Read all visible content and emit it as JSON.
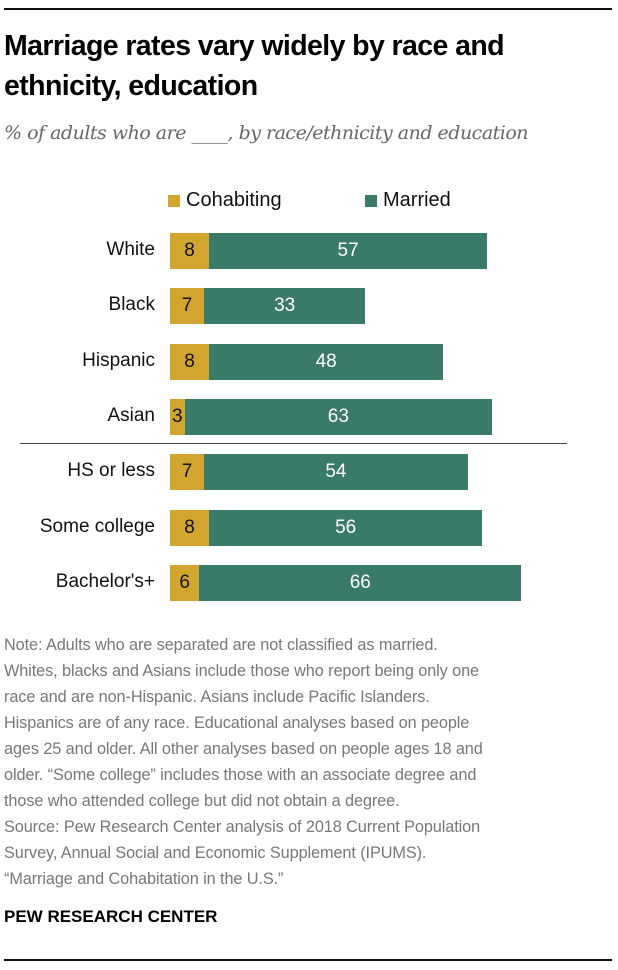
{
  "title": "Marriage rates vary widely by race and ethnicity, education",
  "subtitle": "% of adults who are ____, by race/ethnicity and education",
  "colors": {
    "cohabiting": "#D1A52E",
    "married": "#3A7A6A"
  },
  "chart_data": {
    "type": "bar",
    "orientation": "horizontal",
    "stacked": true,
    "title": "Marriage rates vary widely by race and ethnicity, education",
    "subtitle": "% of adults who are ____, by race/ethnicity and education",
    "legend": [
      "Cohabiting",
      "Married"
    ],
    "legend_position": "top",
    "categories": [
      "White",
      "Black",
      "Hispanic",
      "Asian",
      "HS or less",
      "Some college",
      "Bachelor's+"
    ],
    "groups": [
      [
        "White",
        "Black",
        "Hispanic",
        "Asian"
      ],
      [
        "HS or less",
        "Some college",
        "Bachelor's+"
      ]
    ],
    "series": [
      {
        "name": "Cohabiting",
        "values": [
          8,
          7,
          8,
          3,
          7,
          8,
          6
        ]
      },
      {
        "name": "Married",
        "values": [
          57,
          33,
          48,
          63,
          54,
          56,
          66
        ]
      }
    ],
    "xlim": [
      0,
      100
    ],
    "grid": false
  },
  "notes": [
    "Note: Adults who are separated are not classified as married.",
    "Whites, blacks and Asians include those who report being only one",
    "race and are non-Hispanic. Asians include Pacific Islanders.",
    "Hispanics are of any race. Educational analyses based on people",
    "ages 25 and older. All other analyses based on people ages 18 and",
    "older. “Some college” includes those with an associate degree and",
    "those who attended college but did not obtain a degree.",
    "Source: Pew Research Center analysis of 2018 Current Population",
    "Survey, Annual Social and Economic Supplement (IPUMS).",
    "“Marriage and Cohabitation in the U.S.”"
  ],
  "brand": "PEW RESEARCH CENTER"
}
